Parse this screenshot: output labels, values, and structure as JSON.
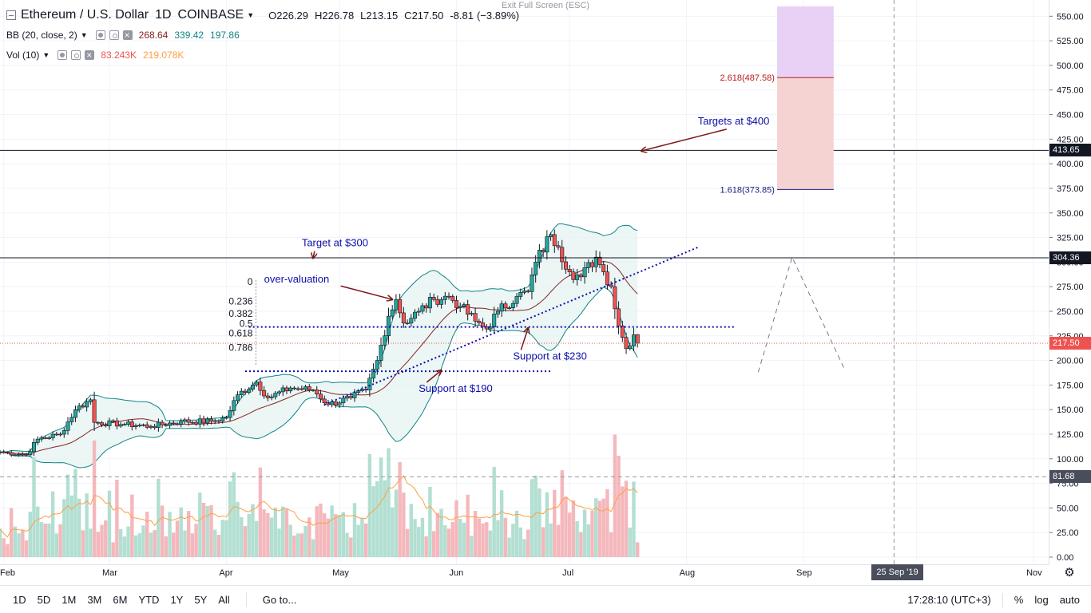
{
  "header": {
    "symbol": "Ethereum / U.S. Dollar",
    "interval": "1D",
    "exchange": "COINBASE",
    "open_label": "O",
    "open": "226.29",
    "high_label": "H",
    "high": "226.78",
    "low_label": "L",
    "low": "213.15",
    "close_label": "C",
    "close": "217.50",
    "change": "-8.81",
    "change_pct": "(−3.89%)",
    "exit_fullscreen": "Exit Full Screen (ESC)"
  },
  "indicators": {
    "bb": {
      "label": "BB (20, close, 2)",
      "basis": "268.64",
      "upper": "339.42",
      "lower": "197.86"
    },
    "vol": {
      "label": "Vol (10)",
      "volume": "83.243K",
      "ma": "219.078K"
    }
  },
  "colors": {
    "up": "#26a69a",
    "down": "#ef5350",
    "bb_basis": "#872323",
    "bb_band": "#138484",
    "bb_fill": "#e6f4f2",
    "vol_up": "#b2dfd2",
    "vol_down": "#f4b8bc",
    "vol_ma": "#ff9f43",
    "annotation": "#0d0da8",
    "arrow": "#7b1717"
  },
  "chart_data": {
    "type": "candlestick",
    "symbol": "ETHUSD",
    "timeframe": "1D",
    "ylim": [
      0,
      560
    ],
    "x_start": "2019-01-31",
    "x_end": "2019-11-05",
    "y_ticks": [
      "0.00",
      "25.00",
      "50.00",
      "75.00",
      "100.00",
      "125.00",
      "150.00",
      "175.00",
      "200.00",
      "225.00",
      "250.00",
      "275.00",
      "300.00",
      "325.00",
      "350.00",
      "375.00",
      "400.00",
      "425.00",
      "450.00",
      "475.00",
      "500.00",
      "525.00",
      "550.00"
    ],
    "x_tick_labels": [
      {
        "label": "Feb",
        "date": "2019-02-01"
      },
      {
        "label": "Mar",
        "date": "2019-03-01"
      },
      {
        "label": "Apr",
        "date": "2019-04-01"
      },
      {
        "label": "May",
        "date": "2019-05-01"
      },
      {
        "label": "Jun",
        "date": "2019-06-01"
      },
      {
        "label": "Jul",
        "date": "2019-07-01"
      },
      {
        "label": "Aug",
        "date": "2019-08-01"
      },
      {
        "label": "Sep",
        "date": "2019-09-01"
      },
      {
        "label": "Oct",
        "date": "2019-10-01"
      },
      {
        "label": "Nov",
        "date": "2019-11-01"
      }
    ],
    "close_anchors": [
      {
        "date": "2019-01-31",
        "close": 107
      },
      {
        "date": "2019-02-07",
        "close": 104
      },
      {
        "date": "2019-02-10",
        "close": 120
      },
      {
        "date": "2019-02-16",
        "close": 125
      },
      {
        "date": "2019-02-20",
        "close": 150
      },
      {
        "date": "2019-02-24",
        "close": 160
      },
      {
        "date": "2019-02-25",
        "close": 137
      },
      {
        "date": "2019-03-05",
        "close": 135
      },
      {
        "date": "2019-03-12",
        "close": 133
      },
      {
        "date": "2019-03-20",
        "close": 138
      },
      {
        "date": "2019-03-28",
        "close": 138
      },
      {
        "date": "2019-04-01",
        "close": 142
      },
      {
        "date": "2019-04-04",
        "close": 165
      },
      {
        "date": "2019-04-09",
        "close": 178
      },
      {
        "date": "2019-04-12",
        "close": 162
      },
      {
        "date": "2019-04-18",
        "close": 172
      },
      {
        "date": "2019-04-24",
        "close": 170
      },
      {
        "date": "2019-04-28",
        "close": 155
      },
      {
        "date": "2019-05-04",
        "close": 162
      },
      {
        "date": "2019-05-08",
        "close": 170
      },
      {
        "date": "2019-05-11",
        "close": 200
      },
      {
        "date": "2019-05-14",
        "close": 245
      },
      {
        "date": "2019-05-16",
        "close": 262
      },
      {
        "date": "2019-05-18",
        "close": 238
      },
      {
        "date": "2019-05-22",
        "close": 250
      },
      {
        "date": "2019-05-26",
        "close": 262
      },
      {
        "date": "2019-05-30",
        "close": 265
      },
      {
        "date": "2019-06-02",
        "close": 255
      },
      {
        "date": "2019-06-06",
        "close": 240
      },
      {
        "date": "2019-06-09",
        "close": 232
      },
      {
        "date": "2019-06-12",
        "close": 250
      },
      {
        "date": "2019-06-17",
        "close": 265
      },
      {
        "date": "2019-06-20",
        "close": 270
      },
      {
        "date": "2019-06-22",
        "close": 300
      },
      {
        "date": "2019-06-26",
        "close": 328
      },
      {
        "date": "2019-06-28",
        "close": 315
      },
      {
        "date": "2019-07-01",
        "close": 290
      },
      {
        "date": "2019-07-04",
        "close": 285
      },
      {
        "date": "2019-07-08",
        "close": 305
      },
      {
        "date": "2019-07-10",
        "close": 290
      },
      {
        "date": "2019-07-12",
        "close": 275
      },
      {
        "date": "2019-07-14",
        "close": 235
      },
      {
        "date": "2019-07-16",
        "close": 212
      },
      {
        "date": "2019-07-18",
        "close": 226
      },
      {
        "date": "2019-07-19",
        "close": 217.5
      }
    ],
    "bollinger": {
      "period": 20,
      "stddev": 2,
      "last_basis": 268.64,
      "last_upper": 339.42,
      "last_lower": 197.86
    },
    "horizontal_lines": [
      {
        "price": 413.65,
        "label": "413.65"
      },
      {
        "price": 304.36,
        "label": "304.36"
      }
    ],
    "last_price": {
      "price": 217.5,
      "label": "217.50"
    },
    "crosshair": {
      "price": 81.68,
      "label": "81.68",
      "time_label": "25 Sep '19",
      "date": "2019-09-25"
    },
    "fibonacci_retracement": {
      "levels": [
        "0",
        "0.236",
        "0.382",
        "0.5",
        "0.618",
        "0.786"
      ],
      "values": [
        0,
        0.236,
        0.382,
        0.5,
        0.618,
        0.786
      ],
      "top": 280,
      "bottom": 195,
      "date": "2019-04-08"
    },
    "fib_extension_box": {
      "date_start": "2019-08-25",
      "date_end": "2019-09-09",
      "levels": [
        {
          "label": "2.618(487.58)",
          "price": 487.58
        },
        {
          "label": "1.618(373.85)",
          "price": 373.85
        }
      ],
      "top": 560
    },
    "trendlines": [
      {
        "name": "rising-support",
        "points": [
          [
            "2019-04-27",
            155
          ],
          [
            "2019-08-04",
            315
          ]
        ]
      },
      {
        "name": "support-230",
        "points": [
          [
            "2019-04-07",
            234
          ],
          [
            "2019-08-14",
            234
          ]
        ]
      },
      {
        "name": "support-190",
        "points": [
          [
            "2019-04-06",
            189
          ],
          [
            "2019-06-26",
            189
          ]
        ]
      }
    ],
    "projection": {
      "points": [
        [
          "2019-08-20",
          188
        ],
        [
          "2019-08-29",
          305
        ],
        [
          "2019-09-12",
          190
        ]
      ]
    },
    "annotations": [
      {
        "text": "Targets at $400",
        "date": "2019-08-04",
        "price": 440,
        "arrow_to": [
          "2019-07-20",
          413
        ]
      },
      {
        "text": "Target at $300",
        "date": "2019-04-21",
        "price": 316,
        "arrow_to": [
          "2019-04-24",
          304
        ]
      },
      {
        "text": "over-valuation",
        "date": "2019-04-11",
        "price": 279,
        "arrow_to": [
          "2019-05-15",
          262
        ]
      },
      {
        "text": "Support at $230",
        "date": "2019-06-16",
        "price": 201,
        "arrow_to": [
          "2019-06-20",
          233
        ]
      },
      {
        "text": "Support at $190",
        "date": "2019-05-22",
        "price": 168,
        "arrow_to": [
          "2019-05-28",
          190
        ]
      }
    ]
  },
  "bottom_bar": {
    "ranges": [
      "1D",
      "5D",
      "1M",
      "3M",
      "6M",
      "YTD",
      "1Y",
      "5Y",
      "All"
    ],
    "goto": "Go to...",
    "clock": "17:28:10 (UTC+3)",
    "pct": "%",
    "log": "log",
    "auto": "auto"
  }
}
